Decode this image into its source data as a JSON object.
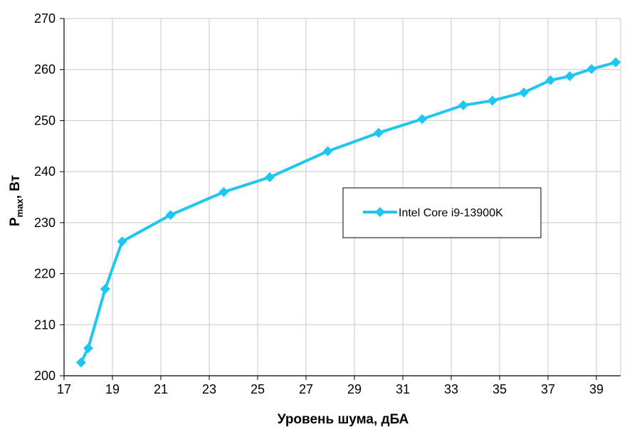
{
  "chart_data": {
    "type": "line",
    "title": "",
    "xlabel": "Уровень шума, дБА",
    "ylabel": {
      "main": "P",
      "sub": "max",
      "rest": ", Вт"
    },
    "xlim": [
      17,
      40
    ],
    "ylim": [
      200,
      270
    ],
    "xticks": [
      17,
      19,
      21,
      23,
      25,
      27,
      29,
      31,
      33,
      35,
      37,
      39
    ],
    "yticks": [
      200,
      210,
      220,
      230,
      240,
      250,
      260,
      270
    ],
    "grid": true,
    "legend_position": "center-right",
    "series": [
      {
        "name": "Intel Core i9-13900K",
        "color": "#1ec6f0",
        "marker": "diamond",
        "x": [
          17.7,
          18.0,
          18.7,
          19.4,
          21.4,
          23.6,
          25.5,
          27.9,
          30.0,
          31.8,
          33.5,
          34.7,
          36.0,
          37.1,
          37.9,
          38.8,
          39.8
        ],
        "y": [
          202.6,
          205.4,
          217.0,
          226.3,
          231.5,
          236.0,
          238.9,
          244.0,
          247.6,
          250.3,
          253.0,
          253.9,
          255.5,
          257.9,
          258.7,
          260.1,
          261.4
        ]
      }
    ]
  }
}
